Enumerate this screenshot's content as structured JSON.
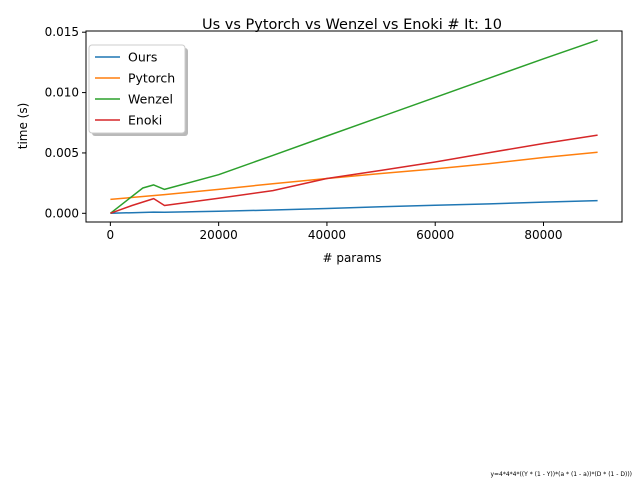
{
  "chart_data": {
    "type": "line",
    "title": "Us vs Pytorch vs Wenzel vs Enoki # It: 10",
    "xlabel": "# params",
    "ylabel": "time (s)",
    "xlim": [
      -4500,
      94500
    ],
    "ylim": [
      -0.00072,
      0.0151
    ],
    "xticks": [
      0,
      20000,
      40000,
      60000,
      80000
    ],
    "xtick_labels": [
      "0",
      "20000",
      "40000",
      "60000",
      "80000"
    ],
    "yticks": [
      0,
      0.005,
      0.01,
      0.015
    ],
    "ytick_labels": [
      "0.000",
      "0.005",
      "0.010",
      "0.015"
    ],
    "grid": false,
    "legend_position": "upper-left",
    "footnote": "y=4*4*4*((Y * (1 - Y))*(a * (1 - a))*(D * (1 - D)))",
    "series": [
      {
        "name": "Ours",
        "color": "#1f77b4",
        "x": [
          0,
          4000,
          8000,
          10000,
          20000,
          30000,
          40000,
          50000,
          60000,
          70000,
          80000,
          90000
        ],
        "y": [
          0.0,
          5e-05,
          0.0001,
          9e-05,
          0.00017,
          0.00027,
          0.0004,
          0.00054,
          0.00067,
          0.00078,
          0.00093,
          0.00105
        ]
      },
      {
        "name": "Pytorch",
        "color": "#ff7f0e",
        "x": [
          0,
          10000,
          20000,
          30000,
          40000,
          50000,
          60000,
          70000,
          80000,
          90000
        ],
        "y": [
          0.00115,
          0.00155,
          0.00198,
          0.00245,
          0.00288,
          0.0033,
          0.00368,
          0.00412,
          0.00462,
          0.00505
        ]
      },
      {
        "name": "Wenzel",
        "color": "#2ca02c",
        "x": [
          0,
          6000,
          8000,
          10000,
          20000,
          30000,
          40000,
          50000,
          60000,
          70000,
          80000,
          90000
        ],
        "y": [
          0.0,
          0.0021,
          0.00235,
          0.00198,
          0.0032,
          0.0048,
          0.0064,
          0.008,
          0.0096,
          0.0112,
          0.0128,
          0.01435
        ]
      },
      {
        "name": "Enoki",
        "color": "#d62728",
        "x": [
          0,
          4000,
          8000,
          10000,
          20000,
          30000,
          40000,
          50000,
          60000,
          70000,
          80000,
          90000
        ],
        "y": [
          0.0,
          0.00065,
          0.00122,
          0.00065,
          0.00125,
          0.00188,
          0.00288,
          0.00355,
          0.00425,
          0.00503,
          0.00578,
          0.00648
        ]
      }
    ]
  }
}
